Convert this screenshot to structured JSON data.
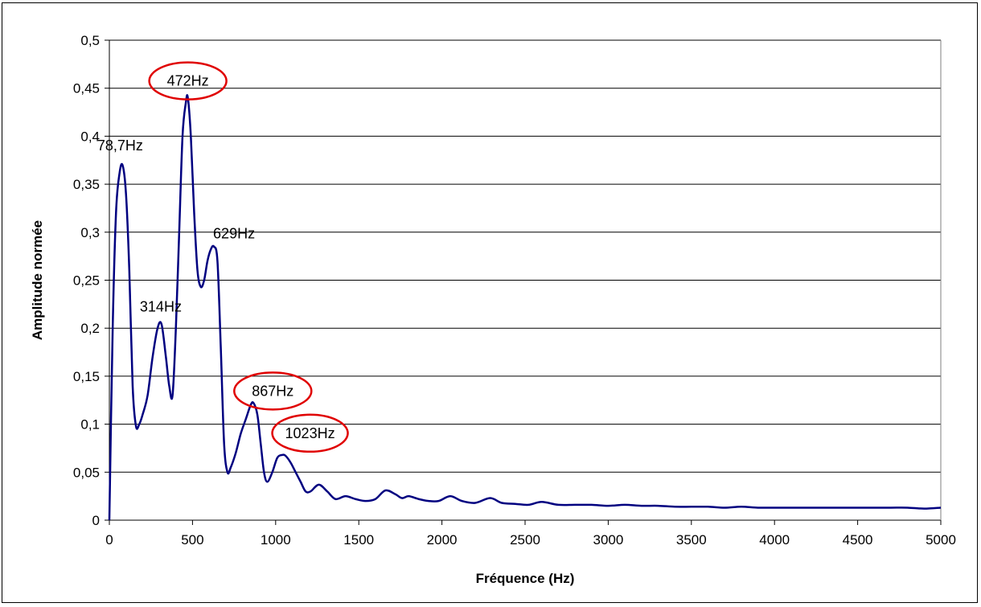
{
  "chart_data": {
    "type": "line",
    "title": "",
    "xlabel": "Fréquence (Hz)",
    "ylabel": "Amplitude normée",
    "xlim": [
      0,
      5000
    ],
    "ylim": [
      0,
      0.5
    ],
    "x_ticks": [
      "0",
      "500",
      "1000",
      "1500",
      "2000",
      "2500",
      "3000",
      "3500",
      "4000",
      "4500",
      "5000"
    ],
    "y_ticks": [
      "0",
      "0,05",
      "0,1",
      "0,15",
      "0,2",
      "0,25",
      "0,3",
      "0,35",
      "0,4",
      "0,45",
      "0,5"
    ],
    "grid": "horizontal",
    "legend": "none",
    "line_color": "#000080",
    "highlight_color": "#e00000",
    "series": [
      {
        "x": [
          0,
          20,
          40,
          60,
          79,
          100,
          120,
          140,
          160,
          180,
          200,
          230,
          260,
          290,
          314,
          340,
          360,
          380,
          400,
          420,
          440,
          460,
          472,
          490,
          510,
          530,
          550,
          570,
          590,
          610,
          629,
          650,
          670,
          690,
          710,
          730,
          760,
          790,
          820,
          850,
          867,
          890,
          910,
          930,
          950,
          980,
          1010,
          1040,
          1060,
          1090,
          1120,
          1150,
          1180,
          1210,
          1260,
          1310,
          1360,
          1420,
          1480,
          1540,
          1600,
          1660,
          1720,
          1760,
          1800,
          1860,
          1920,
          1980,
          2050,
          2120,
          2200,
          2290,
          2360,
          2440,
          2520,
          2600,
          2700,
          2800,
          2900,
          3000,
          3100,
          3200,
          3300,
          3400,
          3500,
          3600,
          3700,
          3800,
          3900,
          4000,
          4100,
          4200,
          4300,
          4400,
          4500,
          4600,
          4700,
          4800,
          4900,
          5000
        ],
        "y": [
          0,
          0.2,
          0.32,
          0.36,
          0.37,
          0.34,
          0.26,
          0.14,
          0.098,
          0.1,
          0.11,
          0.13,
          0.17,
          0.2,
          0.204,
          0.17,
          0.14,
          0.13,
          0.2,
          0.3,
          0.4,
          0.435,
          0.44,
          0.4,
          0.32,
          0.26,
          0.243,
          0.25,
          0.27,
          0.282,
          0.285,
          0.27,
          0.18,
          0.08,
          0.05,
          0.055,
          0.07,
          0.09,
          0.105,
          0.12,
          0.122,
          0.11,
          0.08,
          0.05,
          0.04,
          0.05,
          0.065,
          0.068,
          0.067,
          0.06,
          0.05,
          0.04,
          0.03,
          0.03,
          0.037,
          0.03,
          0.022,
          0.025,
          0.022,
          0.02,
          0.022,
          0.031,
          0.027,
          0.023,
          0.025,
          0.022,
          0.02,
          0.02,
          0.025,
          0.02,
          0.018,
          0.023,
          0.018,
          0.017,
          0.016,
          0.019,
          0.016,
          0.016,
          0.016,
          0.015,
          0.016,
          0.015,
          0.015,
          0.014,
          0.014,
          0.014,
          0.013,
          0.014,
          0.013,
          0.013,
          0.013,
          0.013,
          0.013,
          0.013,
          0.013,
          0.013,
          0.013,
          0.013,
          0.012,
          0.013
        ]
      }
    ],
    "annotations": [
      {
        "text": "78,7Hz",
        "x": 79,
        "y": 0.37,
        "circled": false
      },
      {
        "text": "472Hz",
        "x": 472,
        "y": 0.44,
        "circled": true
      },
      {
        "text": "314Hz",
        "x": 314,
        "y": 0.204,
        "circled": false
      },
      {
        "text": "629Hz",
        "x": 629,
        "y": 0.285,
        "circled": false
      },
      {
        "text": "867Hz",
        "x": 867,
        "y": 0.122,
        "circled": true
      },
      {
        "text": "1023Hz",
        "x": 1023,
        "y": 0.068,
        "circled": true
      }
    ]
  }
}
